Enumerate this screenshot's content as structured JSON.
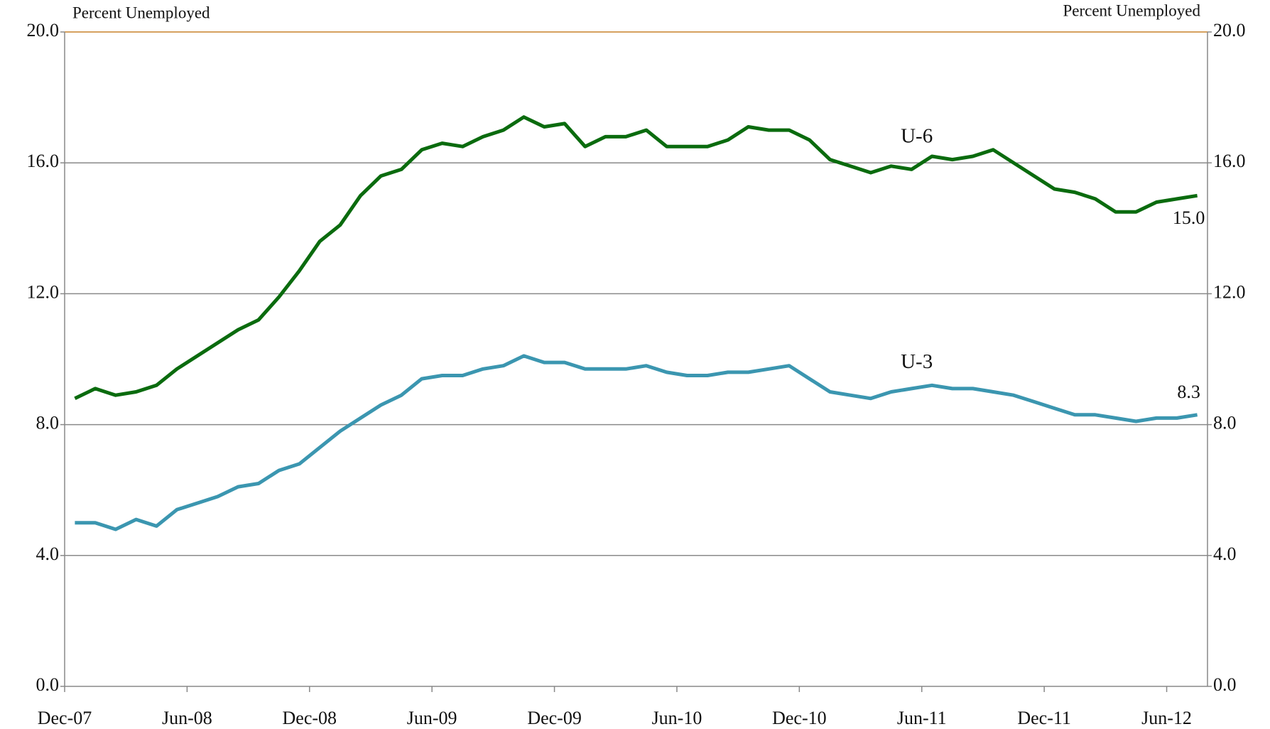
{
  "chart_data": {
    "type": "line",
    "y_label": "Percent Unemployed",
    "y2_label": "Percent Unemployed",
    "categories": [
      "Dec-07",
      null,
      null,
      null,
      null,
      null,
      "Jun-08",
      null,
      null,
      null,
      null,
      null,
      "Dec-08",
      null,
      null,
      null,
      null,
      null,
      "Jun-09",
      null,
      null,
      null,
      null,
      null,
      "Dec-09",
      null,
      null,
      null,
      null,
      null,
      "Jun-10",
      null,
      null,
      null,
      null,
      null,
      "Dec-10",
      null,
      null,
      null,
      null,
      null,
      "Jun-11",
      null,
      null,
      null,
      null,
      null,
      "Dec-11",
      null,
      null,
      null,
      null,
      null,
      "Jun-12",
      null
    ],
    "series": [
      {
        "name": "U-6",
        "color": "#0a6b0e",
        "values": [
          8.8,
          9.1,
          8.9,
          9.0,
          9.2,
          9.7,
          10.1,
          10.5,
          10.9,
          11.2,
          11.9,
          12.7,
          13.6,
          14.1,
          15.0,
          15.6,
          15.8,
          16.4,
          16.6,
          16.5,
          16.8,
          17.0,
          17.4,
          17.1,
          17.2,
          16.5,
          16.8,
          16.8,
          17.0,
          16.5,
          16.5,
          16.5,
          16.7,
          17.1,
          17.0,
          17.0,
          16.7,
          16.1,
          15.9,
          15.7,
          15.9,
          15.8,
          16.2,
          16.1,
          16.2,
          16.4,
          16.0,
          15.6,
          15.2,
          15.1,
          14.9,
          14.5,
          14.5,
          14.8,
          14.9,
          15.0
        ],
        "value_labels": [
          null,
          null,
          null,
          null,
          null,
          null,
          null,
          null,
          null,
          null,
          null,
          null,
          null,
          null,
          null,
          null,
          null,
          null,
          null,
          null,
          null,
          null,
          null,
          null,
          null,
          null,
          null,
          null,
          null,
          null,
          null,
          null,
          null,
          null,
          null,
          null,
          null,
          null,
          null,
          null,
          null,
          null,
          null,
          null,
          null,
          null,
          null,
          null,
          null,
          null,
          null,
          null,
          null,
          null,
          null,
          "15.0"
        ]
      },
      {
        "name": "U-3",
        "color": "#3b96b0",
        "values": [
          5.0,
          5.0,
          4.8,
          5.1,
          4.9,
          5.4,
          5.6,
          5.8,
          6.1,
          6.2,
          6.6,
          6.8,
          7.3,
          7.8,
          8.2,
          8.6,
          8.9,
          9.4,
          9.5,
          9.5,
          9.7,
          9.8,
          10.1,
          9.9,
          9.9,
          9.7,
          9.7,
          9.7,
          9.8,
          9.6,
          9.5,
          9.5,
          9.6,
          9.6,
          9.7,
          9.8,
          9.4,
          9.0,
          8.9,
          8.8,
          9.0,
          9.1,
          9.2,
          9.1,
          9.1,
          9.0,
          8.9,
          8.7,
          8.5,
          8.3,
          8.3,
          8.2,
          8.1,
          8.2,
          8.2,
          8.3
        ],
        "value_labels": [
          null,
          null,
          null,
          null,
          null,
          null,
          null,
          null,
          null,
          null,
          null,
          null,
          null,
          null,
          null,
          null,
          null,
          null,
          null,
          null,
          null,
          null,
          null,
          null,
          null,
          null,
          null,
          null,
          null,
          null,
          null,
          null,
          null,
          null,
          null,
          null,
          null,
          null,
          null,
          null,
          null,
          null,
          null,
          null,
          null,
          null,
          null,
          null,
          null,
          null,
          null,
          null,
          null,
          null,
          null,
          "8.3"
        ]
      }
    ],
    "ylim": [
      0,
      20
    ],
    "y2lim": [
      0,
      20
    ],
    "yticks": [
      {
        "value": 0,
        "label": "0.0"
      },
      {
        "value": 4,
        "label": "4.0"
      },
      {
        "value": 8,
        "label": "8.0"
      },
      {
        "value": 12,
        "label": "12.0"
      },
      {
        "value": 16,
        "label": "16.0"
      },
      {
        "value": 20,
        "label": "20.0"
      }
    ],
    "y2ticks": [
      {
        "value": 0,
        "label": "0.0"
      },
      {
        "value": 4,
        "label": "4.0"
      },
      {
        "value": 8,
        "label": "8.0"
      },
      {
        "value": 12,
        "label": "12.0"
      },
      {
        "value": 16,
        "label": "16.0"
      },
      {
        "value": 20,
        "label": "20.0"
      }
    ],
    "grid": true
  }
}
